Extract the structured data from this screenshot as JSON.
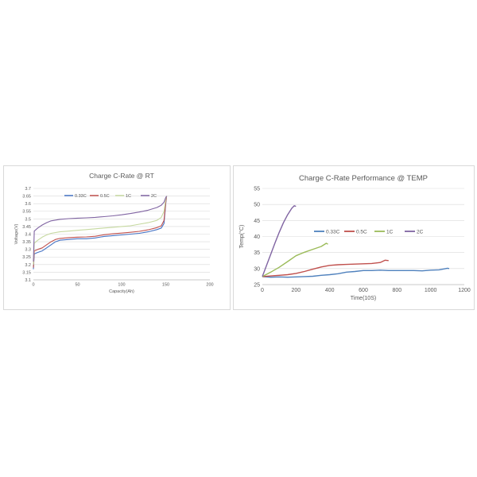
{
  "chart_data": [
    {
      "type": "line",
      "title": "Charge C-Rate @ RT",
      "xlabel": "Capacity(Ah)",
      "ylabel": "Voltage(V)",
      "xlim": [
        0,
        200
      ],
      "ylim": [
        3.1,
        3.7
      ],
      "xticks": [
        "0",
        "50",
        "100",
        "150",
        "200"
      ],
      "yticks": [
        "3.1",
        "3.15",
        "3.2",
        "3.25",
        "3.3",
        "3.35",
        "3.4",
        "3.45",
        "3.5",
        "3.55",
        "3.6",
        "3.65",
        "3.7"
      ],
      "grid": true,
      "legend": "top-left",
      "series": [
        {
          "name": "0.33C",
          "color": "#4472c4",
          "points": [
            [
              0,
              3.17
            ],
            [
              1,
              3.27
            ],
            [
              5,
              3.28
            ],
            [
              10,
              3.29
            ],
            [
              15,
              3.31
            ],
            [
              20,
              3.33
            ],
            [
              25,
              3.35
            ],
            [
              30,
              3.36
            ],
            [
              40,
              3.365
            ],
            [
              50,
              3.37
            ],
            [
              60,
              3.37
            ],
            [
              70,
              3.375
            ],
            [
              80,
              3.385
            ],
            [
              90,
              3.39
            ],
            [
              100,
              3.395
            ],
            [
              110,
              3.4
            ],
            [
              120,
              3.405
            ],
            [
              130,
              3.415
            ],
            [
              140,
              3.43
            ],
            [
              145,
              3.44
            ],
            [
              148,
              3.47
            ],
            [
              150,
              3.6
            ],
            [
              151,
              3.65
            ]
          ]
        },
        {
          "name": "0.5C",
          "color": "#c0504d",
          "points": [
            [
              0,
              3.18
            ],
            [
              1,
              3.29
            ],
            [
              5,
              3.3
            ],
            [
              10,
              3.31
            ],
            [
              15,
              3.33
            ],
            [
              20,
              3.35
            ],
            [
              25,
              3.365
            ],
            [
              30,
              3.372
            ],
            [
              40,
              3.377
            ],
            [
              50,
              3.38
            ],
            [
              60,
              3.382
            ],
            [
              70,
              3.386
            ],
            [
              80,
              3.396
            ],
            [
              90,
              3.402
            ],
            [
              100,
              3.407
            ],
            [
              110,
              3.412
            ],
            [
              120,
              3.418
            ],
            [
              130,
              3.428
            ],
            [
              140,
              3.443
            ],
            [
              145,
              3.455
            ],
            [
              148,
              3.49
            ],
            [
              150,
              3.61
            ],
            [
              151,
              3.65
            ]
          ]
        },
        {
          "name": "1C",
          "color": "#c6d9a0",
          "points": [
            [
              0,
              3.2
            ],
            [
              1,
              3.34
            ],
            [
              5,
              3.36
            ],
            [
              10,
              3.38
            ],
            [
              15,
              3.395
            ],
            [
              20,
              3.405
            ],
            [
              30,
              3.415
            ],
            [
              40,
              3.42
            ],
            [
              50,
              3.425
            ],
            [
              60,
              3.43
            ],
            [
              70,
              3.435
            ],
            [
              80,
              3.44
            ],
            [
              90,
              3.445
            ],
            [
              100,
              3.45
            ],
            [
              110,
              3.455
            ],
            [
              120,
              3.465
            ],
            [
              130,
              3.475
            ],
            [
              140,
              3.49
            ],
            [
              145,
              3.51
            ],
            [
              148,
              3.55
            ],
            [
              150,
              3.63
            ],
            [
              151,
              3.65
            ]
          ]
        },
        {
          "name": "2C",
          "color": "#8064a2",
          "points": [
            [
              0,
              3.22
            ],
            [
              1,
              3.42
            ],
            [
              5,
              3.44
            ],
            [
              10,
              3.46
            ],
            [
              15,
              3.475
            ],
            [
              20,
              3.487
            ],
            [
              30,
              3.497
            ],
            [
              40,
              3.502
            ],
            [
              50,
              3.505
            ],
            [
              60,
              3.507
            ],
            [
              70,
              3.51
            ],
            [
              80,
              3.515
            ],
            [
              90,
              3.52
            ],
            [
              100,
              3.527
            ],
            [
              110,
              3.535
            ],
            [
              120,
              3.545
            ],
            [
              130,
              3.557
            ],
            [
              140,
              3.575
            ],
            [
              145,
              3.59
            ],
            [
              148,
              3.61
            ],
            [
              150,
              3.64
            ],
            [
              151,
              3.65
            ]
          ]
        }
      ]
    },
    {
      "type": "line",
      "title": "Charge C-Rate Performance  @ TEMP",
      "xlabel": "Time(10S)",
      "ylabel": "Temp(°C)",
      "xlim": [
        0,
        1200
      ],
      "ylim": [
        25,
        55
      ],
      "xticks": [
        "0",
        "200",
        "400",
        "600",
        "800",
        "1000",
        "1200"
      ],
      "yticks": [
        "25",
        "30",
        "35",
        "40",
        "45",
        "50",
        "55"
      ],
      "grid": true,
      "legend": "top-right",
      "series": [
        {
          "name": "0.33C",
          "color": "#4f81bd",
          "points": [
            [
              0,
              27.5
            ],
            [
              50,
              27.3
            ],
            [
              100,
              27.4
            ],
            [
              150,
              27.3
            ],
            [
              200,
              27.4
            ],
            [
              250,
              27.5
            ],
            [
              300,
              27.6
            ],
            [
              350,
              27.9
            ],
            [
              400,
              28.1
            ],
            [
              450,
              28.4
            ],
            [
              500,
              28.9
            ],
            [
              550,
              29.1
            ],
            [
              600,
              29.4
            ],
            [
              650,
              29.4
            ],
            [
              700,
              29.5
            ],
            [
              750,
              29.4
            ],
            [
              800,
              29.4
            ],
            [
              850,
              29.4
            ],
            [
              900,
              29.4
            ],
            [
              950,
              29.3
            ],
            [
              1000,
              29.5
            ],
            [
              1050,
              29.6
            ],
            [
              1100,
              30.1
            ],
            [
              1110,
              30.0
            ]
          ]
        },
        {
          "name": "0.5C",
          "color": "#c0504d",
          "points": [
            [
              0,
              27.5
            ],
            [
              50,
              27.7
            ],
            [
              100,
              27.9
            ],
            [
              150,
              28.1
            ],
            [
              200,
              28.5
            ],
            [
              250,
              29.1
            ],
            [
              300,
              29.8
            ],
            [
              350,
              30.5
            ],
            [
              400,
              31.0
            ],
            [
              450,
              31.2
            ],
            [
              500,
              31.3
            ],
            [
              550,
              31.4
            ],
            [
              600,
              31.5
            ],
            [
              650,
              31.6
            ],
            [
              700,
              31.9
            ],
            [
              730,
              32.6
            ],
            [
              750,
              32.5
            ]
          ]
        },
        {
          "name": "1C",
          "color": "#9bbb59",
          "points": [
            [
              0,
              27.5
            ],
            [
              50,
              28.9
            ],
            [
              100,
              30.4
            ],
            [
              150,
              32.2
            ],
            [
              200,
              34.0
            ],
            [
              250,
              35.1
            ],
            [
              300,
              36.0
            ],
            [
              350,
              36.9
            ],
            [
              380,
              37.9
            ],
            [
              390,
              37.6
            ]
          ]
        },
        {
          "name": "2C",
          "color": "#8064a2",
          "points": [
            [
              0,
              27.5
            ],
            [
              25,
              31.0
            ],
            [
              50,
              34.5
            ],
            [
              75,
              38.0
            ],
            [
              100,
              41.3
            ],
            [
              125,
              44.3
            ],
            [
              150,
              46.8
            ],
            [
              175,
              48.8
            ],
            [
              190,
              49.6
            ],
            [
              200,
              49.4
            ]
          ]
        }
      ]
    }
  ]
}
